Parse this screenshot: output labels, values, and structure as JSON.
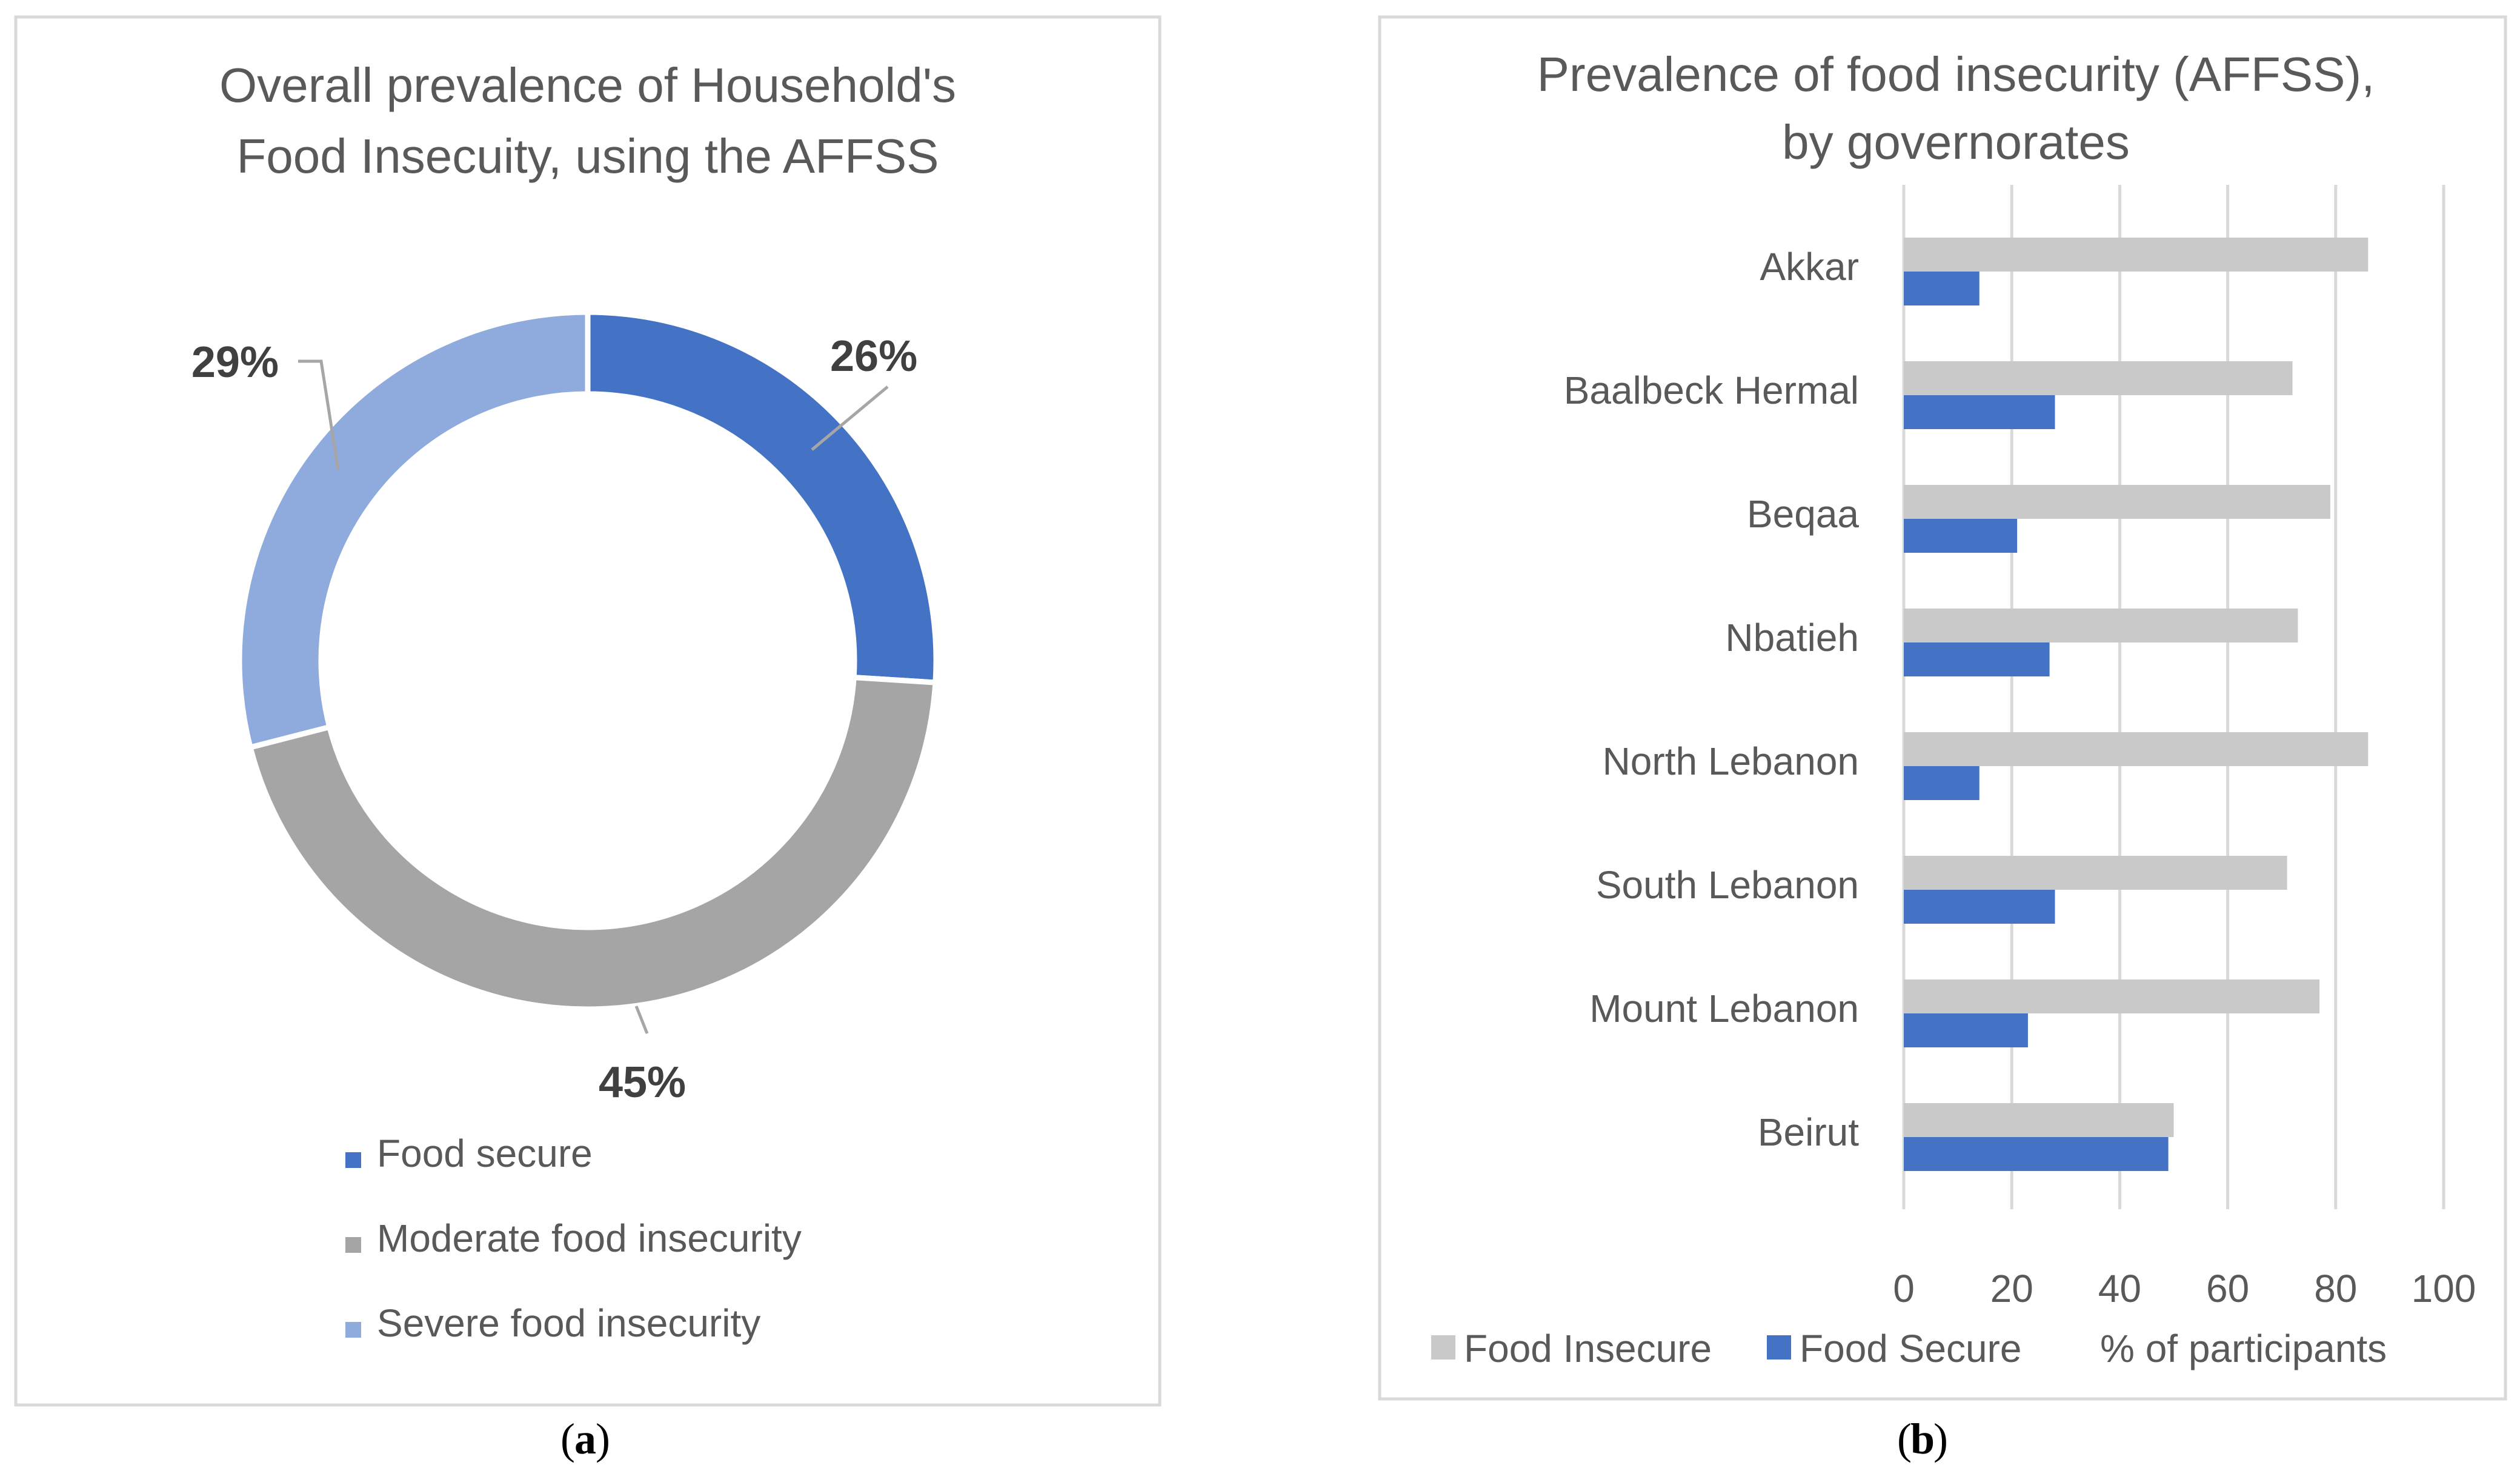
{
  "captions": {
    "a": "a",
    "b": "b"
  },
  "chart_data": [
    {
      "type": "pie",
      "variant": "donut",
      "title_lines": [
        "Overall prevalence of Household's",
        "Food Insecuity, using the AFFSS"
      ],
      "slices": [
        {
          "label": "Food secure",
          "value": 26,
          "display": "26%",
          "color": "#4472C4"
        },
        {
          "label": "Moderate food insecurity",
          "value": 45,
          "display": "45%",
          "color": "#A5A5A5"
        },
        {
          "label": "Severe food insecurity",
          "value": 29,
          "display": "29%",
          "color": "#8FAADC"
        }
      ],
      "legend_position": "bottom"
    },
    {
      "type": "bar",
      "orientation": "horizontal",
      "title_lines": [
        "Prevalence of food insecurity (AFFSS),",
        "by governorates"
      ],
      "categories": [
        "Akkar",
        "Baalbeck Hermal",
        "Beqaa",
        "Nbatieh",
        "North Lebanon",
        "South Lebanon",
        "Mount Lebanon",
        "Beirut"
      ],
      "series": [
        {
          "name": "Food Insecure",
          "color": "#C9C9C9",
          "values": [
            86,
            72,
            79,
            73,
            86,
            71,
            77,
            50
          ]
        },
        {
          "name": "Food Secure",
          "color": "#4472C4",
          "values": [
            14,
            28,
            21,
            27,
            14,
            28,
            23,
            49
          ]
        }
      ],
      "xlim": [
        0,
        100
      ],
      "xticks": [
        "0",
        "20",
        "40",
        "60",
        "80",
        "100"
      ],
      "xlabel": "% of participants",
      "grid": true,
      "legend_position": "bottom"
    }
  ]
}
